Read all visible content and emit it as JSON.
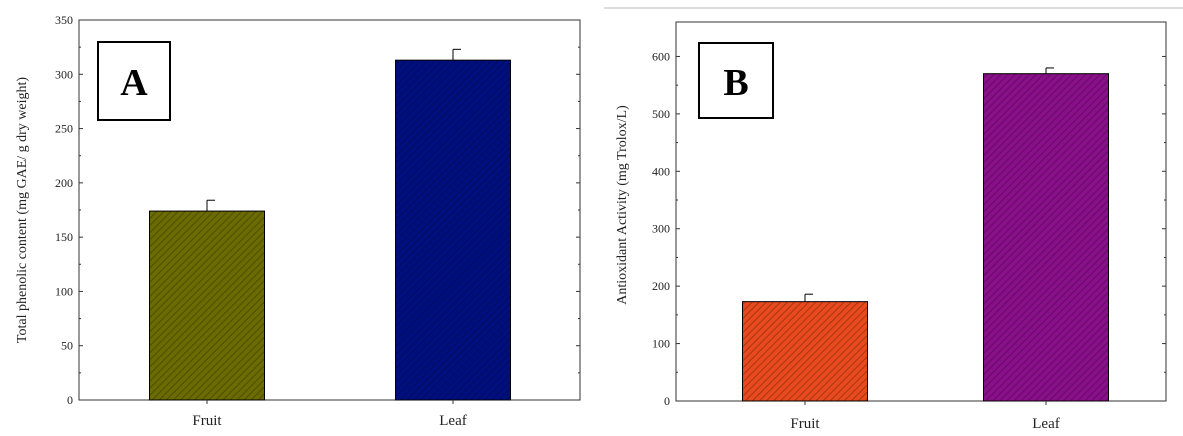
{
  "figure": {
    "panels": [
      {
        "letter": "A"
      },
      {
        "letter": "B"
      }
    ]
  },
  "chart_data": [
    {
      "type": "bar",
      "panel_label": "A",
      "categories": [
        "Fruit",
        "Leaf"
      ],
      "values": [
        174,
        313
      ],
      "errors": [
        10,
        10
      ],
      "colors": [
        "#6b6b00",
        "#000f80"
      ],
      "hatch": "diagonal",
      "title": "",
      "xlabel": "",
      "ylabel": "Total phenolic content (mg GAE/ g dry weight)",
      "ylim": [
        0,
        350
      ],
      "yticks": [
        0,
        50,
        100,
        150,
        200,
        250,
        300,
        350
      ],
      "grid": false,
      "legend": "none"
    },
    {
      "type": "bar",
      "panel_label": "B",
      "categories": [
        "Fruit",
        "Leaf"
      ],
      "values": [
        173,
        570
      ],
      "errors": [
        13,
        10
      ],
      "colors": [
        "#e84a1e",
        "#8a0f8a"
      ],
      "hatch": "diagonal",
      "title": "",
      "xlabel": "",
      "ylabel": "Antioxidant Activity (mg Trolox/L)",
      "ylim": [
        0,
        660
      ],
      "yticks": [
        0,
        100,
        200,
        300,
        400,
        500,
        600
      ],
      "grid": false,
      "legend": "none"
    }
  ]
}
